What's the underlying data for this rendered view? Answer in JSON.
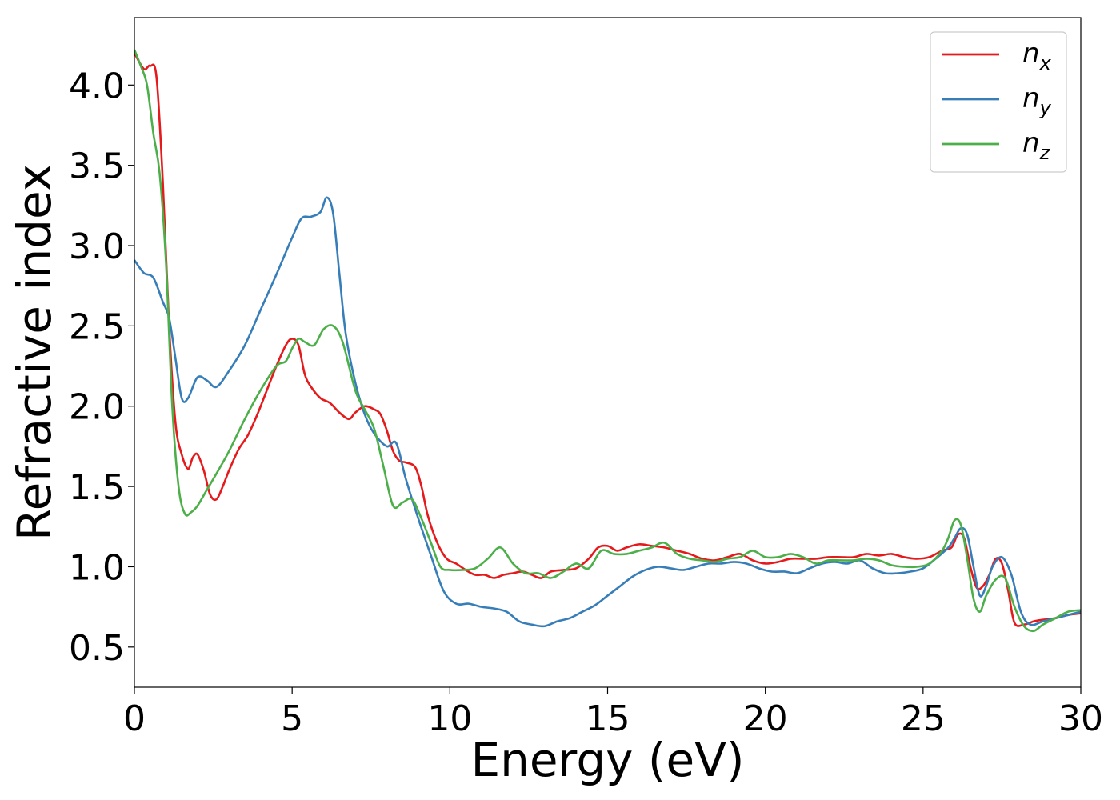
{
  "chart_data": {
    "type": "line",
    "title": "",
    "xlabel": "Energy (eV)",
    "ylabel": "Refractive index",
    "xlim": [
      0,
      30
    ],
    "ylim": [
      0.25,
      4.42
    ],
    "xticks": [
      0,
      5,
      10,
      15,
      20,
      25,
      30
    ],
    "xtick_labels": [
      "0",
      "5",
      "10",
      "15",
      "20",
      "25",
      "30"
    ],
    "yticks": [
      0.5,
      1.0,
      1.5,
      2.0,
      2.5,
      3.0,
      3.5,
      4.0
    ],
    "ytick_labels": [
      "0.5",
      "1.0",
      "1.5",
      "2.0",
      "2.5",
      "3.0",
      "3.5",
      "4.0"
    ],
    "grid": false,
    "legend_position": "top-right",
    "series": [
      {
        "name": "n",
        "subscript": "x",
        "color": "#e41a1c",
        "x": [
          0,
          0.3,
          0.5,
          0.7,
          0.9,
          1.1,
          1.3,
          1.5,
          1.7,
          1.85,
          2.0,
          2.2,
          2.4,
          2.6,
          2.8,
          3.0,
          3.3,
          3.6,
          3.9,
          4.2,
          4.5,
          4.8,
          5.0,
          5.2,
          5.4,
          5.6,
          5.9,
          6.2,
          6.5,
          6.8,
          7.0,
          7.3,
          7.6,
          7.8,
          8.0,
          8.2,
          8.4,
          8.6,
          8.9,
          9.1,
          9.3,
          9.6,
          9.9,
          10.2,
          10.5,
          10.8,
          11.1,
          11.4,
          11.7,
          12.0,
          12.3,
          12.6,
          12.9,
          13.2,
          13.6,
          14.0,
          14.4,
          14.7,
          15.0,
          15.3,
          15.6,
          16.0,
          16.4,
          16.8,
          17.2,
          17.6,
          18.0,
          18.4,
          18.8,
          19.2,
          19.6,
          20.0,
          20.4,
          20.8,
          21.2,
          21.6,
          22.0,
          22.4,
          22.8,
          23.2,
          23.6,
          24.0,
          24.4,
          24.8,
          25.2,
          25.6,
          25.9,
          26.1,
          26.3,
          26.5,
          26.7,
          26.9,
          27.1,
          27.3,
          27.5,
          27.7,
          27.9,
          28.2,
          28.5,
          28.8,
          29.2,
          29.6,
          30.0
        ],
        "y": [
          4.2,
          4.1,
          4.12,
          4.05,
          3.4,
          2.5,
          1.9,
          1.7,
          1.61,
          1.68,
          1.7,
          1.6,
          1.45,
          1.42,
          1.5,
          1.6,
          1.73,
          1.82,
          1.95,
          2.1,
          2.25,
          2.38,
          2.42,
          2.38,
          2.2,
          2.12,
          2.05,
          2.02,
          1.96,
          1.92,
          1.96,
          2.0,
          1.98,
          1.95,
          1.85,
          1.72,
          1.66,
          1.65,
          1.62,
          1.5,
          1.32,
          1.15,
          1.05,
          1.02,
          0.98,
          0.95,
          0.95,
          0.93,
          0.95,
          0.96,
          0.97,
          0.95,
          0.93,
          0.97,
          0.98,
          0.99,
          1.05,
          1.12,
          1.13,
          1.1,
          1.12,
          1.14,
          1.13,
          1.12,
          1.1,
          1.08,
          1.05,
          1.04,
          1.06,
          1.08,
          1.04,
          1.02,
          1.03,
          1.05,
          1.05,
          1.05,
          1.06,
          1.06,
          1.06,
          1.08,
          1.07,
          1.08,
          1.06,
          1.05,
          1.06,
          1.1,
          1.12,
          1.2,
          1.18,
          1.0,
          0.87,
          0.88,
          0.95,
          1.05,
          1.02,
          0.85,
          0.65,
          0.64,
          0.66,
          0.67,
          0.68,
          0.7,
          0.71
        ]
      },
      {
        "name": "n",
        "subscript": "y",
        "color": "#377eb8",
        "x": [
          0,
          0.3,
          0.6,
          0.9,
          1.1,
          1.3,
          1.5,
          1.7,
          2.0,
          2.3,
          2.6,
          3.0,
          3.5,
          4.0,
          4.5,
          5.0,
          5.3,
          5.6,
          5.9,
          6.1,
          6.3,
          6.5,
          6.7,
          7.0,
          7.3,
          7.6,
          8.0,
          8.3,
          8.6,
          9.0,
          9.4,
          9.8,
          10.2,
          10.6,
          11.0,
          11.4,
          11.8,
          12.2,
          12.6,
          13.0,
          13.4,
          13.8,
          14.2,
          14.6,
          15.0,
          15.4,
          15.8,
          16.2,
          16.6,
          17.0,
          17.4,
          17.8,
          18.2,
          18.6,
          19.0,
          19.4,
          19.8,
          20.2,
          20.6,
          21.0,
          21.4,
          21.8,
          22.2,
          22.6,
          23.0,
          23.4,
          23.8,
          24.2,
          24.6,
          25.0,
          25.4,
          25.8,
          26.0,
          26.2,
          26.4,
          26.6,
          26.8,
          27.0,
          27.2,
          27.5,
          27.8,
          28.1,
          28.4,
          28.8,
          29.2,
          29.6,
          30.0
        ],
        "y": [
          2.91,
          2.83,
          2.8,
          2.65,
          2.55,
          2.3,
          2.05,
          2.05,
          2.18,
          2.16,
          2.12,
          2.22,
          2.38,
          2.6,
          2.82,
          3.05,
          3.17,
          3.18,
          3.21,
          3.3,
          3.2,
          2.82,
          2.45,
          2.15,
          1.95,
          1.83,
          1.75,
          1.77,
          1.55,
          1.3,
          1.07,
          0.85,
          0.77,
          0.77,
          0.75,
          0.74,
          0.72,
          0.66,
          0.64,
          0.63,
          0.66,
          0.68,
          0.72,
          0.76,
          0.82,
          0.88,
          0.94,
          0.98,
          1.0,
          0.99,
          0.98,
          1.0,
          1.02,
          1.02,
          1.03,
          1.02,
          0.99,
          0.97,
          0.97,
          0.96,
          0.99,
          1.02,
          1.03,
          1.02,
          1.04,
          0.99,
          0.96,
          0.96,
          0.97,
          0.99,
          1.05,
          1.12,
          1.18,
          1.24,
          1.2,
          1.0,
          0.82,
          0.88,
          1.0,
          1.06,
          0.95,
          0.72,
          0.64,
          0.66,
          0.68,
          0.7,
          0.72
        ]
      },
      {
        "name": "n",
        "subscript": "z",
        "color": "#4daf4a",
        "x": [
          0,
          0.2,
          0.4,
          0.6,
          0.8,
          1.0,
          1.2,
          1.4,
          1.6,
          1.8,
          2.0,
          2.3,
          2.6,
          3.0,
          3.5,
          4.0,
          4.5,
          4.8,
          5.0,
          5.2,
          5.4,
          5.7,
          6.0,
          6.3,
          6.6,
          7.0,
          7.3,
          7.6,
          7.9,
          8.2,
          8.5,
          8.8,
          9.1,
          9.4,
          9.7,
          10.0,
          10.4,
          10.8,
          11.2,
          11.6,
          12.0,
          12.4,
          12.8,
          13.2,
          13.6,
          14.0,
          14.4,
          14.8,
          15.2,
          15.6,
          16.0,
          16.4,
          16.8,
          17.2,
          17.6,
          18.0,
          18.4,
          18.8,
          19.2,
          19.6,
          20.0,
          20.4,
          20.8,
          21.2,
          21.6,
          22.0,
          22.4,
          22.8,
          23.2,
          23.6,
          24.0,
          24.4,
          24.8,
          25.2,
          25.6,
          25.8,
          26.0,
          26.2,
          26.4,
          26.6,
          26.8,
          27.0,
          27.3,
          27.6,
          27.9,
          28.2,
          28.5,
          28.8,
          29.2,
          29.6,
          30.0
        ],
        "y": [
          4.22,
          4.12,
          4.0,
          3.7,
          3.45,
          2.9,
          2.0,
          1.5,
          1.33,
          1.34,
          1.38,
          1.48,
          1.58,
          1.72,
          1.92,
          2.1,
          2.25,
          2.28,
          2.36,
          2.42,
          2.4,
          2.38,
          2.48,
          2.5,
          2.4,
          2.1,
          1.98,
          1.86,
          1.62,
          1.38,
          1.4,
          1.42,
          1.3,
          1.15,
          1.0,
          0.98,
          0.98,
          0.99,
          1.05,
          1.12,
          1.02,
          0.96,
          0.96,
          0.93,
          0.97,
          1.02,
          0.99,
          1.1,
          1.08,
          1.08,
          1.1,
          1.12,
          1.15,
          1.08,
          1.05,
          1.04,
          1.03,
          1.05,
          1.06,
          1.1,
          1.06,
          1.06,
          1.08,
          1.06,
          1.02,
          1.04,
          1.04,
          1.04,
          1.05,
          1.04,
          1.01,
          1.0,
          1.0,
          1.02,
          1.1,
          1.18,
          1.29,
          1.26,
          1.05,
          0.8,
          0.72,
          0.82,
          0.92,
          0.93,
          0.75,
          0.63,
          0.6,
          0.64,
          0.68,
          0.72,
          0.73
        ]
      }
    ]
  }
}
